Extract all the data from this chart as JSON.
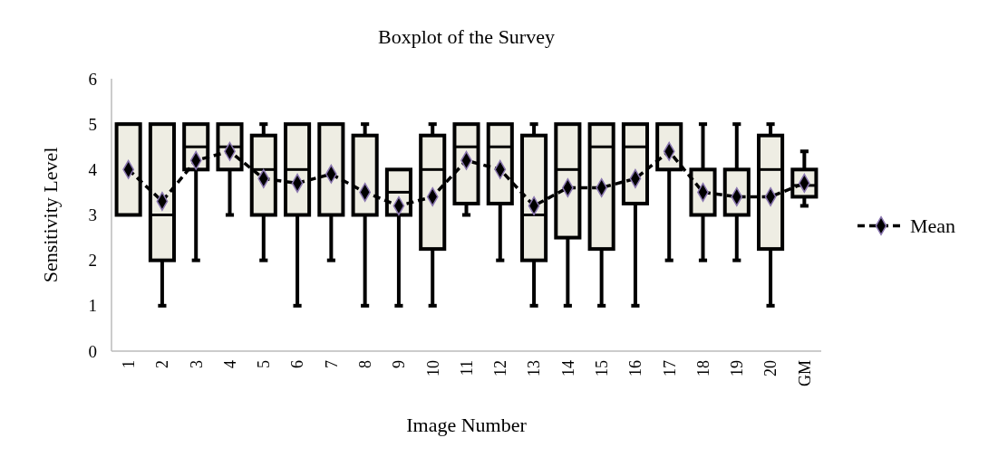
{
  "chart_data": {
    "type": "box",
    "title": "Boxplot of the Survey",
    "xlabel": "Image Number",
    "ylabel": "Sensitivity Level",
    "categories": [
      "1",
      "2",
      "3",
      "4",
      "5",
      "6",
      "7",
      "8",
      "9",
      "10",
      "11",
      "12",
      "13",
      "14",
      "15",
      "16",
      "17",
      "18",
      "19",
      "20",
      "GM"
    ],
    "ylim": [
      0,
      6
    ],
    "yticks": [
      0,
      1,
      2,
      3,
      4,
      5,
      6
    ],
    "legend": "right",
    "marker": "diamond",
    "line_style": "dashed",
    "series": [
      {
        "color": "#eeede3",
        "boxes": [
          {
            "low": 3,
            "q1": 3,
            "median": 5,
            "q3": 5,
            "high": 5
          },
          {
            "low": 1,
            "q1": 2,
            "median": 3,
            "q3": 5,
            "high": 5
          },
          {
            "low": 2,
            "q1": 4,
            "median": 4.5,
            "q3": 5,
            "high": 5
          },
          {
            "low": 3,
            "q1": 4,
            "median": 4.5,
            "q3": 5,
            "high": 5
          },
          {
            "low": 2,
            "q1": 3,
            "median": 4,
            "q3": 4.75,
            "high": 5
          },
          {
            "low": 1,
            "q1": 3,
            "median": 4,
            "q3": 5,
            "high": 5
          },
          {
            "low": 2,
            "q1": 3,
            "median": 5,
            "q3": 5,
            "high": 5
          },
          {
            "low": 1,
            "q1": 3,
            "median": 3,
            "q3": 4.75,
            "high": 5
          },
          {
            "low": 1,
            "q1": 3,
            "median": 3.5,
            "q3": 4,
            "high": 4
          },
          {
            "low": 1,
            "q1": 2.25,
            "median": 4,
            "q3": 4.75,
            "high": 5
          },
          {
            "low": 3,
            "q1": 3.25,
            "median": 4.5,
            "q3": 5,
            "high": 5
          },
          {
            "low": 2,
            "q1": 3.25,
            "median": 4.5,
            "q3": 5,
            "high": 5
          },
          {
            "low": 1,
            "q1": 2,
            "median": 3,
            "q3": 4.75,
            "high": 5
          },
          {
            "low": 1,
            "q1": 2.5,
            "median": 4,
            "q3": 5,
            "high": 5
          },
          {
            "low": 1,
            "q1": 2.25,
            "median": 4.5,
            "q3": 5,
            "high": 5
          },
          {
            "low": 1,
            "q1": 3.25,
            "median": 4.5,
            "q3": 5,
            "high": 5
          },
          {
            "low": 2,
            "q1": 4,
            "median": 5,
            "q3": 5,
            "high": 5
          },
          {
            "low": 2,
            "q1": 3,
            "median": 3,
            "q3": 4,
            "high": 5
          },
          {
            "low": 2,
            "q1": 3,
            "median": 3,
            "q3": 4,
            "high": 5
          },
          {
            "low": 1,
            "q1": 2.25,
            "median": 4,
            "q3": 4.75,
            "high": 5
          },
          {
            "low": 3.2,
            "q1": 3.4,
            "median": 3.65,
            "q3": 4,
            "high": 4.4
          }
        ]
      },
      {
        "name": "Mean",
        "type": "line",
        "color": "#000000",
        "values": [
          4,
          3.3,
          4.2,
          4.4,
          3.8,
          3.7,
          3.9,
          3.5,
          3.2,
          3.4,
          4.2,
          4,
          3.2,
          3.6,
          3.6,
          3.8,
          4.4,
          3.5,
          3.4,
          3.4,
          3.7
        ]
      }
    ]
  }
}
